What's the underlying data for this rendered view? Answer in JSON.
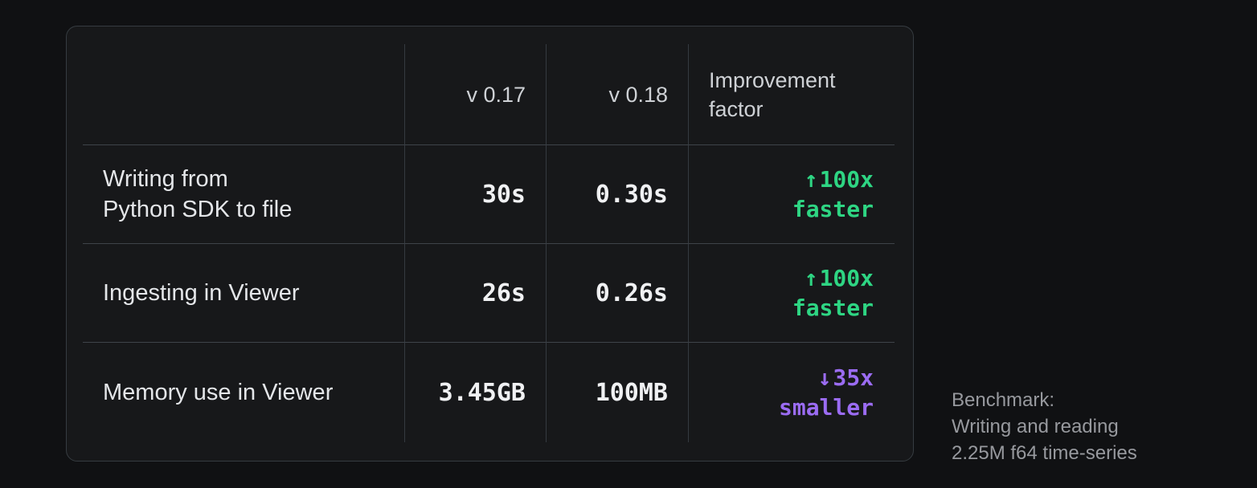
{
  "card": {
    "background": "#17181a",
    "border_color": "#363c41"
  },
  "table": {
    "columns": [
      "",
      "v 0.17",
      "v 0.18",
      "Improvement\nfactor"
    ],
    "rows": [
      {
        "label": "Writing from\nPython SDK to file",
        "v0_17": "30s",
        "v0_18": "0.30s",
        "improvement": {
          "arrow": "↑",
          "factor": "100x",
          "word": "faster",
          "direction": "up",
          "color": "#2ed583"
        }
      },
      {
        "label": "Ingesting in Viewer",
        "v0_17": "26s",
        "v0_18": "0.26s",
        "improvement": {
          "arrow": "↑",
          "factor": "100x",
          "word": "faster",
          "direction": "up",
          "color": "#2ed583"
        }
      },
      {
        "label": "Memory use in Viewer",
        "v0_17": "3.45GB",
        "v0_18": "100MB",
        "improvement": {
          "arrow": "↓",
          "factor": "35x",
          "word": "smaller",
          "direction": "down",
          "color": "#9b6cf3"
        }
      }
    ]
  },
  "caption": "Benchmark:\nWriting and reading\n2.25M f64 time-series",
  "colors": {
    "page_background": "#101113",
    "header_text": "#ced1d5",
    "label_text": "#e4e6e9",
    "value_text": "#f0f1f3",
    "faster_green": "#2ed583",
    "smaller_purple": "#9b6cf3",
    "caption_text": "#97999e",
    "divider_horizontal": "#3e4349",
    "divider_vertical": "#353a40"
  },
  "chart_data": {
    "type": "table",
    "columns": [
      "",
      "v 0.17",
      "v 0.18",
      "Improvement factor"
    ],
    "rows": [
      [
        "Writing from Python SDK to file",
        "30s",
        "0.30s",
        "↑ 100x faster"
      ],
      [
        "Ingesting in Viewer",
        "26s",
        "0.26s",
        "↑ 100x faster"
      ],
      [
        "Memory use in Viewer",
        "3.45GB",
        "100MB",
        "↓ 35x smaller"
      ]
    ],
    "caption": "Benchmark: Writing and reading 2.25M f64 time-series"
  }
}
